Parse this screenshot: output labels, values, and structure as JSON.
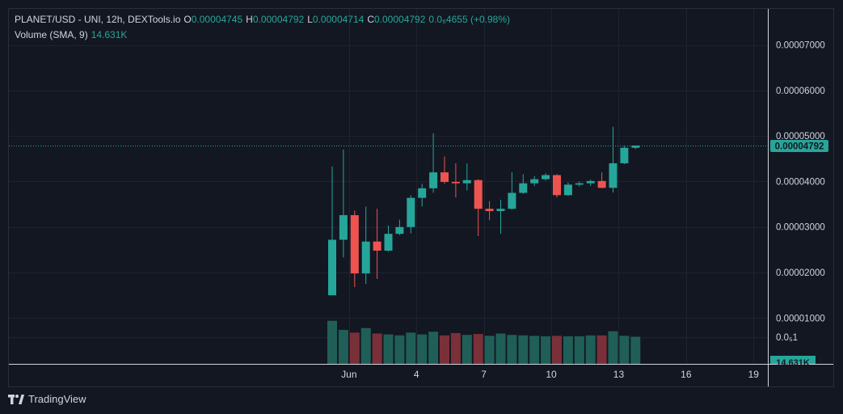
{
  "legend": {
    "symbol": "PLANET/USD - UNI, 12h, DEXTools.io",
    "o_label": "O",
    "o_value": "0.00004745",
    "h_label": "H",
    "h_value": "0.00004792",
    "l_label": "L",
    "l_value": "0.00004714",
    "c_label": "C",
    "c_value": "0.00004792",
    "change": "0.0₆4655 (+0.98%)",
    "volume_label": "Volume (SMA, 9)",
    "volume_value": "14.631K"
  },
  "branding": {
    "logo_text": "TradingView"
  },
  "colors": {
    "up": "#26a69a",
    "down": "#ef5350",
    "volume_up": "#1f5f58",
    "volume_down": "#7a3039",
    "background": "#131722",
    "grid": "#1f2330"
  },
  "chart_data": {
    "type": "candlestick",
    "price_axis": {
      "min": 5.8e-06,
      "max": 8e-06,
      "ticks": [
        {
          "value": 7e-05,
          "label": "0.00007000"
        },
        {
          "value": 6e-05,
          "label": "0.00006000"
        },
        {
          "value": 5e-05,
          "label": "0.00005000"
        },
        {
          "value": 4e-05,
          "label": "0.00004000"
        },
        {
          "value": 3e-05,
          "label": "0.00003000"
        },
        {
          "value": 2e-05,
          "label": "0.00002000"
        },
        {
          "value": 1e-05,
          "label": "0.00001000"
        },
        {
          "value": 5.8e-06,
          "label": "0.0₅1"
        }
      ],
      "last_price": 4.792e-05,
      "last_price_label": "0.00004792",
      "last_volume_label": "14.631K"
    },
    "time_axis": {
      "ticks": [
        {
          "index": 1.5,
          "label": "Jun"
        },
        {
          "index": 7.5,
          "label": "4"
        },
        {
          "index": 13.5,
          "label": "7"
        },
        {
          "index": 19.5,
          "label": "10"
        },
        {
          "index": 25.5,
          "label": "13"
        },
        {
          "index": 31.5,
          "label": "16"
        },
        {
          "index": 37.5,
          "label": "19"
        }
      ]
    },
    "candles": [
      {
        "o": 1.5e-05,
        "h": 4.33e-05,
        "l": 1.5e-05,
        "c": 2.72e-05
      },
      {
        "o": 2.72e-05,
        "h": 4.7e-05,
        "l": 2.33e-05,
        "c": 3.26e-05
      },
      {
        "o": 3.26e-05,
        "h": 3.36e-05,
        "l": 1.68e-05,
        "c": 1.98e-05
      },
      {
        "o": 1.98e-05,
        "h": 3.45e-05,
        "l": 1.75e-05,
        "c": 2.68e-05
      },
      {
        "o": 2.68e-05,
        "h": 3.4e-05,
        "l": 1.86e-05,
        "c": 2.48e-05
      },
      {
        "o": 2.48e-05,
        "h": 3.03e-05,
        "l": 2.46e-05,
        "c": 2.85e-05
      },
      {
        "o": 2.85e-05,
        "h": 3.16e-05,
        "l": 2.82e-05,
        "c": 3e-05
      },
      {
        "o": 3e-05,
        "h": 3.7e-05,
        "l": 2.86e-05,
        "c": 3.64e-05
      },
      {
        "o": 3.64e-05,
        "h": 3.95e-05,
        "l": 3.45e-05,
        "c": 3.85e-05
      },
      {
        "o": 3.85e-05,
        "h": 5.06e-05,
        "l": 3.75e-05,
        "c": 4.2e-05
      },
      {
        "o": 4.2e-05,
        "h": 4.55e-05,
        "l": 3.95e-05,
        "c": 3.99e-05
      },
      {
        "o": 3.99e-05,
        "h": 4.4e-05,
        "l": 3.65e-05,
        "c": 3.96e-05
      },
      {
        "o": 3.96e-05,
        "h": 4.4e-05,
        "l": 3.8e-05,
        "c": 4.03e-05
      },
      {
        "o": 4.03e-05,
        "h": 4.05e-05,
        "l": 2.8e-05,
        "c": 3.4e-05
      },
      {
        "o": 3.4e-05,
        "h": 3.57e-05,
        "l": 3.15e-05,
        "c": 3.35e-05
      },
      {
        "o": 3.35e-05,
        "h": 3.6e-05,
        "l": 2.85e-05,
        "c": 3.4e-05
      },
      {
        "o": 3.4e-05,
        "h": 4.2e-05,
        "l": 3.38e-05,
        "c": 3.75e-05
      },
      {
        "o": 3.75e-05,
        "h": 4.16e-05,
        "l": 3.73e-05,
        "c": 3.96e-05
      },
      {
        "o": 3.96e-05,
        "h": 4.12e-05,
        "l": 3.9e-05,
        "c": 4.05e-05
      },
      {
        "o": 4.05e-05,
        "h": 4.18e-05,
        "l": 4.02e-05,
        "c": 4.14e-05
      },
      {
        "o": 4.14e-05,
        "h": 4.16e-05,
        "l": 3.65e-05,
        "c": 3.7e-05
      },
      {
        "o": 3.7e-05,
        "h": 3.98e-05,
        "l": 3.68e-05,
        "c": 3.93e-05
      },
      {
        "o": 3.93e-05,
        "h": 4e-05,
        "l": 3.89e-05,
        "c": 3.96e-05
      },
      {
        "o": 3.96e-05,
        "h": 4.04e-05,
        "l": 3.9e-05,
        "c": 4.01e-05
      },
      {
        "o": 4.01e-05,
        "h": 4.2e-05,
        "l": 3.85e-05,
        "c": 3.86e-05
      },
      {
        "o": 3.86e-05,
        "h": 5.2e-05,
        "l": 3.76e-05,
        "c": 4.4e-05
      },
      {
        "o": 4.4e-05,
        "h": 4.78e-05,
        "l": 4.38e-05,
        "c": 4.74e-05
      },
      {
        "o": 4.74e-05,
        "h": 4.79e-05,
        "l": 4.71e-05,
        "c": 4.79e-05
      }
    ],
    "volume": [
      {
        "v": 9.4e-06,
        "dir": "up"
      },
      {
        "v": 7.4e-06,
        "dir": "up"
      },
      {
        "v": 6.8e-06,
        "dir": "down"
      },
      {
        "v": 7.8e-06,
        "dir": "up"
      },
      {
        "v": 6.6e-06,
        "dir": "down"
      },
      {
        "v": 6.4e-06,
        "dir": "up"
      },
      {
        "v": 6.2e-06,
        "dir": "up"
      },
      {
        "v": 6.8e-06,
        "dir": "up"
      },
      {
        "v": 6.4e-06,
        "dir": "up"
      },
      {
        "v": 7e-06,
        "dir": "up"
      },
      {
        "v": 6.2e-06,
        "dir": "down"
      },
      {
        "v": 6.7e-06,
        "dir": "down"
      },
      {
        "v": 6.3e-06,
        "dir": "up"
      },
      {
        "v": 6.5e-06,
        "dir": "down"
      },
      {
        "v": 6.1e-06,
        "dir": "up"
      },
      {
        "v": 6.6e-06,
        "dir": "up"
      },
      {
        "v": 6.3e-06,
        "dir": "up"
      },
      {
        "v": 6.2e-06,
        "dir": "up"
      },
      {
        "v": 6.1e-06,
        "dir": "up"
      },
      {
        "v": 6e-06,
        "dir": "up"
      },
      {
        "v": 6.1e-06,
        "dir": "down"
      },
      {
        "v": 6e-06,
        "dir": "up"
      },
      {
        "v": 6e-06,
        "dir": "up"
      },
      {
        "v": 6.2e-06,
        "dir": "up"
      },
      {
        "v": 6.2e-06,
        "dir": "down"
      },
      {
        "v": 7.1e-06,
        "dir": "up"
      },
      {
        "v": 6.1e-06,
        "dir": "up"
      },
      {
        "v": 5.9e-06,
        "dir": "up"
      }
    ]
  }
}
